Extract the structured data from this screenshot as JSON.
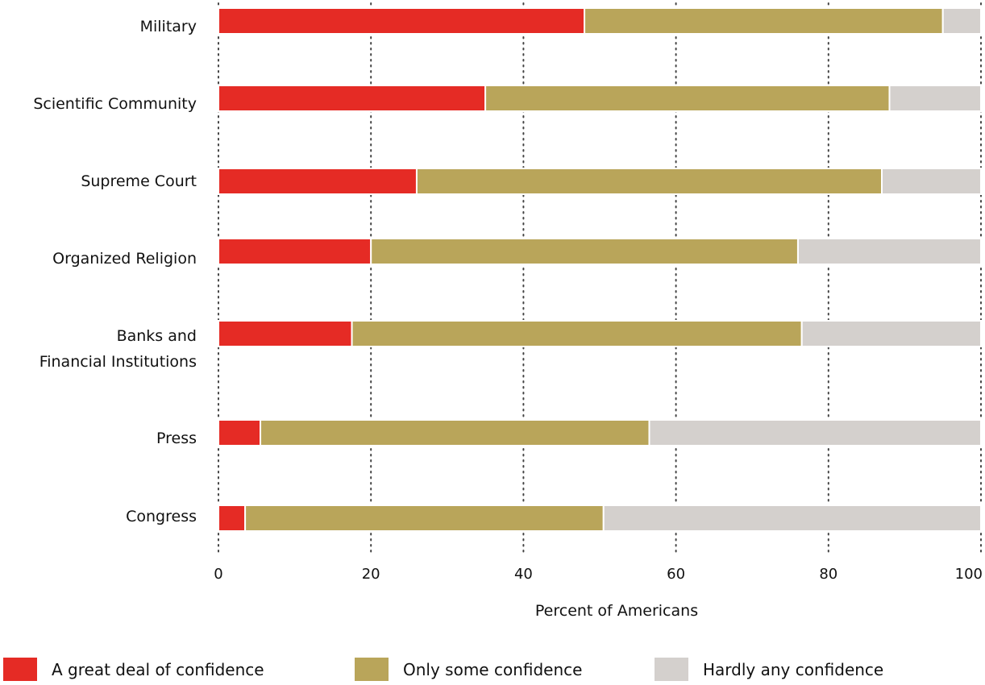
{
  "chart_data": {
    "type": "bar",
    "orientation": "horizontal",
    "stacked": true,
    "categories": [
      [
        "Military"
      ],
      [
        "Scientific Community"
      ],
      [
        "Supreme Court"
      ],
      [
        "Organized Religion"
      ],
      [
        "Banks and",
        "Financial Institutions"
      ],
      [
        "Press"
      ],
      [
        "Congress"
      ]
    ],
    "series": [
      {
        "name": "A great deal of confidence",
        "color": "#e52b25",
        "values": [
          48,
          35,
          26,
          20,
          17.5,
          5.5,
          3.5
        ]
      },
      {
        "name": "Only some confidence",
        "color": "#b9a55a",
        "values": [
          47,
          53,
          61,
          56,
          59,
          51,
          47
        ]
      },
      {
        "name": "Hardly any confidence",
        "color": "#d4d0cd",
        "values": [
          5,
          12,
          13,
          24,
          23.5,
          43.5,
          49.5
        ]
      }
    ],
    "xlabel": "Percent of Americans",
    "ylabel": "",
    "title": "",
    "xlim": [
      0,
      100
    ],
    "xticks": [
      0,
      20,
      40,
      60,
      80,
      100
    ],
    "grid": "vertical dotted",
    "legend_position": "bottom"
  }
}
